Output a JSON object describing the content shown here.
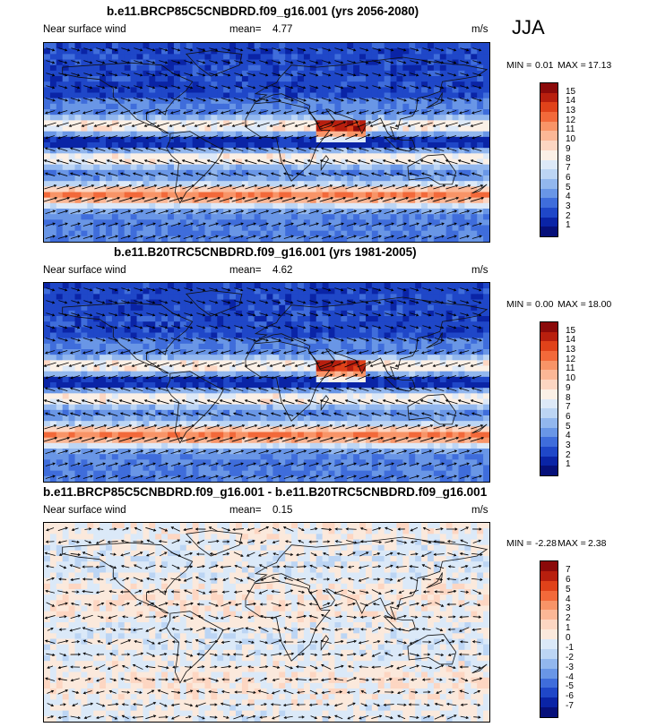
{
  "season": "JJA",
  "panels": [
    {
      "title": "b.e11.BRCP85C5CNBDRD.f09_g16.001 (yrs 2056-2080)",
      "variable": "Near surface wind",
      "mean_label": "mean=",
      "mean_value": "4.77",
      "units": "m/s",
      "min_label": "MIN =",
      "min_value": "0.01",
      "max_label": "MAX =",
      "max_value": "17.13",
      "colorbar_labels": [
        "15",
        "14",
        "13",
        "12",
        "11",
        "10",
        "9",
        "8",
        "7",
        "6",
        "5",
        "4",
        "3",
        "2",
        "1"
      ],
      "colors": [
        "#8b0a0a",
        "#b81f0e",
        "#e0421a",
        "#f2693a",
        "#f89467",
        "#fbb796",
        "#fdd6c2",
        "#fbf0e6",
        "#dde9f8",
        "#bcd5f4",
        "#92b7ee",
        "#6996e6",
        "#3f6ddb",
        "#1f47c8",
        "#0a24a6",
        "#06107a"
      ],
      "field": "abs"
    },
    {
      "title": "b.e11.B20TRC5CNBDRD.f09_g16.001 (yrs 1981-2005)",
      "variable": "Near surface wind",
      "mean_label": "mean=",
      "mean_value": "4.62",
      "units": "m/s",
      "min_label": "MIN =",
      "min_value": "0.00",
      "max_label": "MAX =",
      "max_value": "18.00",
      "colorbar_labels": [
        "15",
        "14",
        "13",
        "12",
        "11",
        "10",
        "9",
        "8",
        "7",
        "6",
        "5",
        "4",
        "3",
        "2",
        "1"
      ],
      "colors": [
        "#8b0a0a",
        "#b81f0e",
        "#e0421a",
        "#f2693a",
        "#f89467",
        "#fbb796",
        "#fdd6c2",
        "#fbf0e6",
        "#dde9f8",
        "#bcd5f4",
        "#92b7ee",
        "#6996e6",
        "#3f6ddb",
        "#1f47c8",
        "#0a24a6",
        "#06107a"
      ],
      "field": "abs"
    },
    {
      "title": "b.e11.BRCP85C5CNBDRD.f09_g16.001 - b.e11.B20TRC5CNBDRD.f09_g16.001",
      "variable": "Near surface wind",
      "mean_label": "mean=",
      "mean_value": "0.15",
      "units": "m/s",
      "min_label": "MIN =",
      "min_value": "-2.28",
      "max_label": "MAX =",
      "max_value": "2.38",
      "colorbar_labels": [
        "7",
        "6",
        "5",
        "4",
        "3",
        "2",
        "1",
        "0",
        "-1",
        "-2",
        "-3",
        "-4",
        "-5",
        "-6",
        "-7"
      ],
      "colors": [
        "#8b0a0a",
        "#b81f0e",
        "#e0421a",
        "#f2693a",
        "#f89467",
        "#fbb796",
        "#fdd6c2",
        "#fbe9dc",
        "#dbe9f8",
        "#bcd5f4",
        "#92b7ee",
        "#6996e6",
        "#3f6ddb",
        "#1f47c8",
        "#0a24a6",
        "#06107a"
      ],
      "field": "diff"
    }
  ]
}
